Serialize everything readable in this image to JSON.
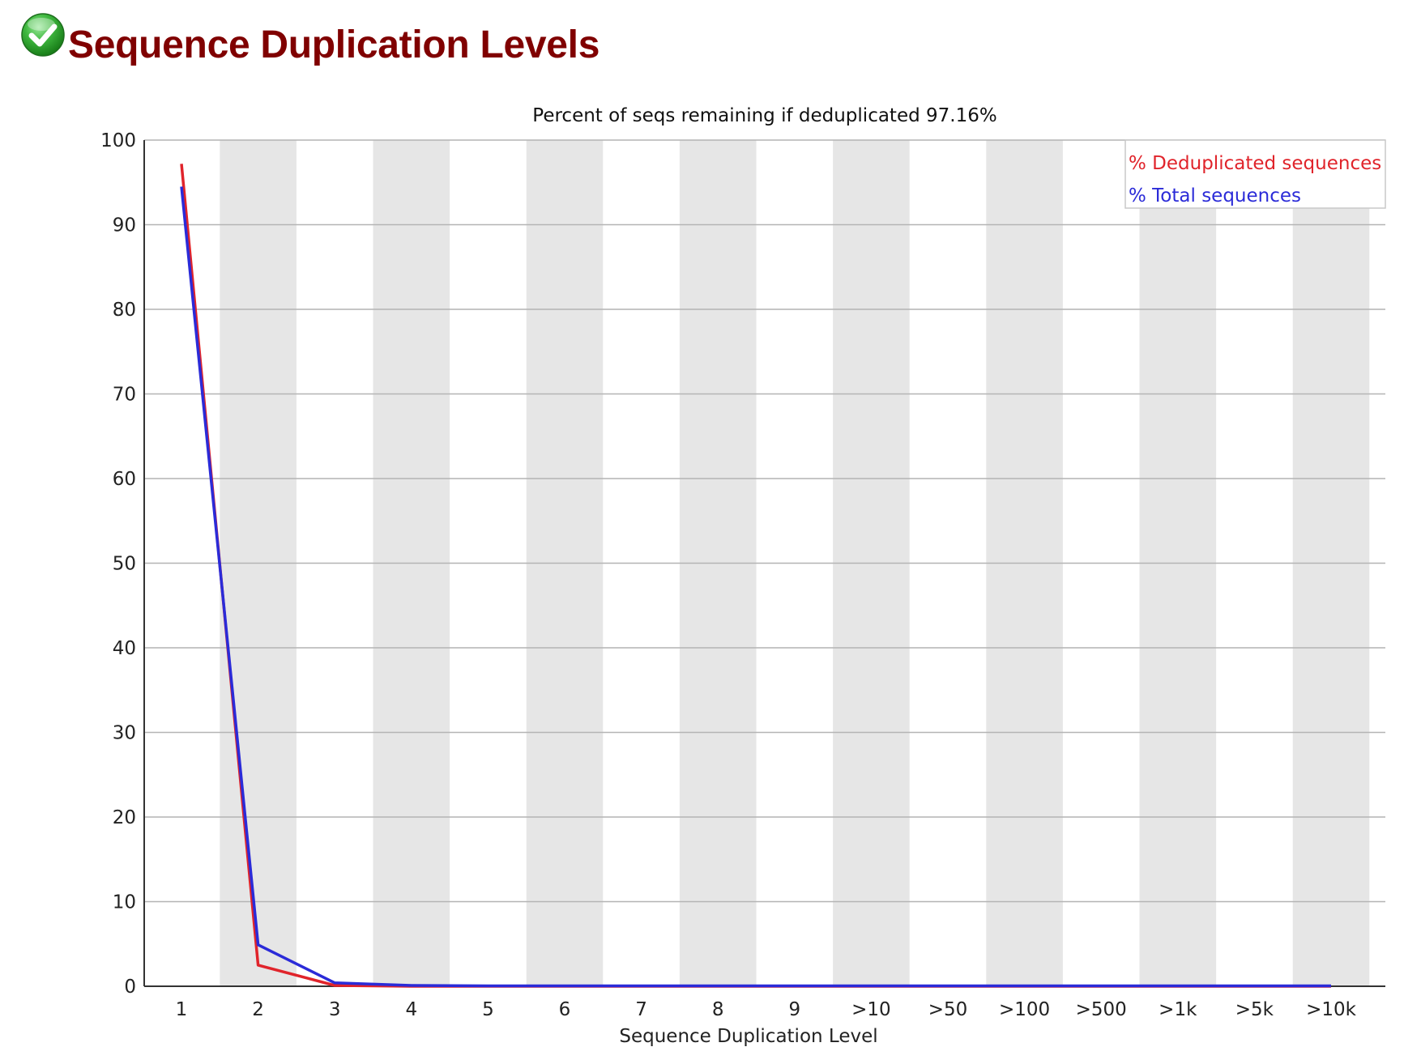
{
  "module": {
    "title": "Sequence Duplication Levels",
    "status_icon": "check-circle-icon",
    "status_color": "#2ea52e"
  },
  "chart_data": {
    "type": "line",
    "title": "Percent of seqs remaining if deduplicated 97.16%",
    "xlabel": "Sequence Duplication Level",
    "ylabel": "",
    "categories": [
      "1",
      "2",
      "3",
      "4",
      "5",
      "6",
      "7",
      "8",
      "9",
      ">10",
      ">50",
      ">100",
      ">500",
      ">1k",
      ">5k",
      ">10k"
    ],
    "ylim": [
      0,
      100
    ],
    "yticks": [
      0,
      10,
      20,
      30,
      40,
      50,
      60,
      70,
      80,
      90,
      100
    ],
    "grid": true,
    "alternating_bands": true,
    "band_color": "#e6e6e6",
    "legend_position": "top-right",
    "series": [
      {
        "name": "% Deduplicated sequences",
        "color": "#e0242b",
        "values": [
          97.2,
          2.5,
          0.1,
          0,
          0,
          0,
          0,
          0,
          0,
          0,
          0,
          0,
          0,
          0,
          0,
          0
        ]
      },
      {
        "name": "% Total sequences",
        "color": "#2b2bd8",
        "values": [
          94.5,
          4.9,
          0.4,
          0.1,
          0.05,
          0.05,
          0.05,
          0.05,
          0.05,
          0.05,
          0.05,
          0.05,
          0.05,
          0.05,
          0.05,
          0.05
        ]
      }
    ]
  }
}
